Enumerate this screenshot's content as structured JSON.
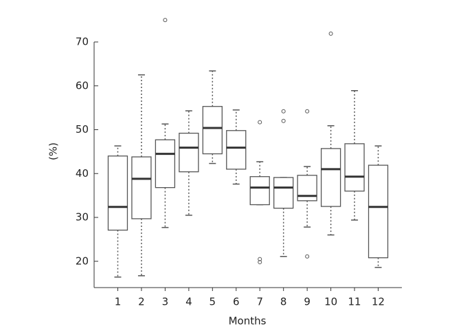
{
  "chart_data": {
    "type": "box",
    "x_label": "Months",
    "y_label": "(%)",
    "categories": [
      "1",
      "2",
      "3",
      "4",
      "5",
      "6",
      "7",
      "8",
      "9",
      "10",
      "11",
      "12"
    ],
    "boxes": [
      {
        "low": 16.4,
        "q1": 27.1,
        "median": 32.4,
        "q3": 44.0,
        "high": 46.3,
        "outliers": []
      },
      {
        "low": 16.7,
        "q1": 29.7,
        "median": 38.8,
        "q3": 43.8,
        "high": 62.5,
        "outliers": []
      },
      {
        "low": 27.7,
        "q1": 36.8,
        "median": 44.5,
        "q3": 47.7,
        "high": 51.3,
        "outliers": [
          75.0
        ]
      },
      {
        "low": 30.5,
        "q1": 40.4,
        "median": 45.9,
        "q3": 49.2,
        "high": 54.3,
        "outliers": []
      },
      {
        "low": 42.3,
        "q1": 44.5,
        "median": 50.4,
        "q3": 55.3,
        "high": 63.4,
        "outliers": []
      },
      {
        "low": 37.6,
        "q1": 41.0,
        "median": 45.9,
        "q3": 49.8,
        "high": 54.5,
        "outliers": []
      },
      {
        "low": 32.9,
        "q1": 32.9,
        "median": 36.8,
        "q3": 39.3,
        "high": 42.7,
        "outliers": [
          51.7,
          20.5,
          19.8
        ]
      },
      {
        "low": 21.1,
        "q1": 32.1,
        "median": 36.8,
        "q3": 39.1,
        "high": 39.1,
        "outliers": [
          54.2,
          52.0
        ]
      },
      {
        "low": 27.8,
        "q1": 33.8,
        "median": 34.9,
        "q3": 39.6,
        "high": 41.6,
        "outliers": [
          54.2,
          21.1
        ]
      },
      {
        "low": 26.0,
        "q1": 32.5,
        "median": 41.0,
        "q3": 45.7,
        "high": 50.9,
        "outliers": [
          71.9
        ]
      },
      {
        "low": 29.4,
        "q1": 36.0,
        "median": 39.3,
        "q3": 46.8,
        "high": 58.9,
        "outliers": []
      },
      {
        "low": 18.6,
        "q1": 20.8,
        "median": 32.4,
        "q3": 41.9,
        "high": 46.3,
        "outliers": []
      }
    ],
    "color": "#555555",
    "median_color": "#333333",
    "ylim": [
      14,
      70
    ],
    "yticks": [
      20,
      30,
      40,
      50,
      60,
      70
    ]
  }
}
